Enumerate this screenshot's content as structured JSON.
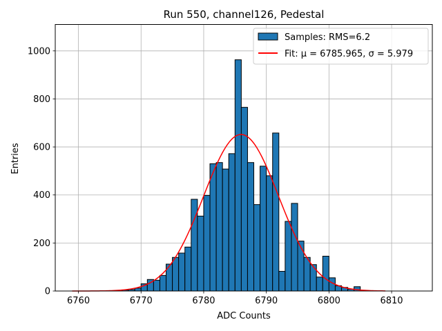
{
  "chart_data": {
    "type": "bar",
    "title": "Run 550, channel126, Pedestal",
    "xlabel": "ADC Counts",
    "ylabel": "Entries",
    "xlim": [
      6756.3,
      6816.5
    ],
    "ylim": [
      0,
      1110
    ],
    "xticks": [
      6760,
      6770,
      6780,
      6790,
      6800,
      6810
    ],
    "yticks": [
      0,
      200,
      400,
      600,
      800,
      1000
    ],
    "grid": true,
    "legend_position": "top-right",
    "histogram": {
      "name": "Samples: RMS=6.2",
      "color": "#1f77b4",
      "edge_color": "#000000",
      "bin_width": 1,
      "bin_starts": [
        6766,
        6767,
        6768,
        6769,
        6770,
        6771,
        6772,
        6773,
        6774,
        6775,
        6776,
        6777,
        6778,
        6779,
        6780,
        6781,
        6782,
        6783,
        6784,
        6785,
        6786,
        6787,
        6788,
        6789,
        6790,
        6791,
        6792,
        6793,
        6794,
        6795,
        6796,
        6797,
        6798,
        6799,
        6800,
        6801,
        6802,
        6803,
        6804
      ],
      "counts": [
        2,
        4,
        6,
        12,
        30,
        48,
        45,
        65,
        112,
        140,
        158,
        183,
        382,
        312,
        398,
        530,
        535,
        508,
        572,
        963,
        765,
        535,
        360,
        520,
        480,
        658,
        82,
        290,
        365,
        208,
        140,
        110,
        58,
        145,
        55,
        22,
        15,
        8,
        18
      ]
    },
    "fit": {
      "name": "Fit: μ = 6785.965, σ = 5.979",
      "color": "#ff0000",
      "mu": 6785.965,
      "sigma": 5.979,
      "amplitude": 652,
      "x_range": [
        6759,
        6809
      ]
    }
  }
}
